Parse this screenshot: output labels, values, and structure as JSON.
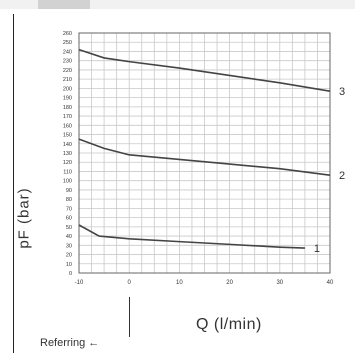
{
  "chart_data": {
    "type": "line",
    "xlabel": "Q (l/min)",
    "ylabel": "pF (bar)",
    "annotation": "Referring ←",
    "xlim": [
      -10,
      40
    ],
    "ylim": [
      0,
      260
    ],
    "x_ticks": [
      "-10",
      "0",
      "10",
      "20",
      "30",
      "40"
    ],
    "y_ticks": [
      "0",
      "10",
      "20",
      "30",
      "40",
      "50",
      "60",
      "70",
      "80",
      "90",
      "100",
      "110",
      "120",
      "130",
      "140",
      "150",
      "160",
      "170",
      "180",
      "190",
      "200",
      "210",
      "220",
      "230",
      "240",
      "250",
      "260"
    ],
    "grid": true,
    "series": [
      {
        "name": "1",
        "x": [
          -10,
          -6,
          0,
          10,
          20,
          30,
          35
        ],
        "y": [
          52,
          40,
          37,
          34,
          31,
          28,
          27
        ]
      },
      {
        "name": "2",
        "x": [
          -10,
          -5,
          0,
          10,
          20,
          30,
          40
        ],
        "y": [
          145,
          135,
          128,
          123,
          118,
          113,
          106
        ]
      },
      {
        "name": "3",
        "x": [
          -10,
          -5,
          0,
          10,
          20,
          30,
          40
        ],
        "y": [
          242,
          233,
          229,
          222,
          214,
          206,
          197
        ]
      }
    ],
    "colors": {
      "line": "#444444",
      "grid": "#c9c9c9",
      "axis": "#666666",
      "text": "#333333"
    }
  }
}
